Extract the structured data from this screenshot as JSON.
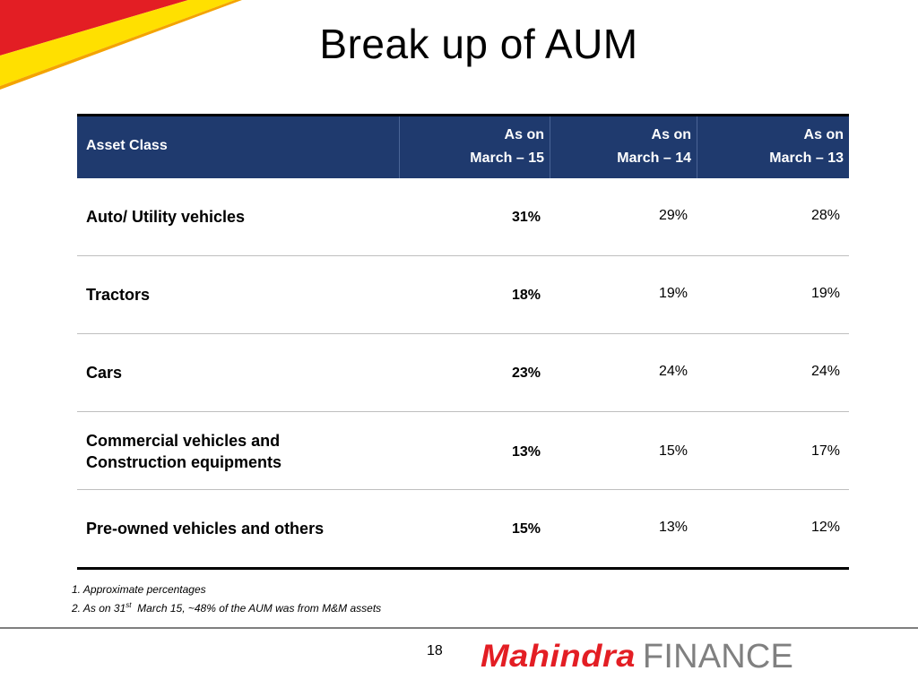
{
  "slide": {
    "title": "Break up of AUM",
    "page_number": "18"
  },
  "table": {
    "header": {
      "asset_class": "Asset Class",
      "columns": [
        {
          "line1": "As on",
          "line2": "March – 15"
        },
        {
          "line1": "As on",
          "line2": "March – 14"
        },
        {
          "line1": "As on",
          "line2": "March – 13"
        }
      ]
    },
    "rows": [
      {
        "label": "Auto/ Utility vehicles",
        "m15": "31%",
        "m14": "29%",
        "m13": "28%"
      },
      {
        "label": "Tractors",
        "m15": "18%",
        "m14": "19%",
        "m13": "19%"
      },
      {
        "label": "Cars",
        "m15": "23%",
        "m14": "24%",
        "m13": "24%"
      },
      {
        "label_line1": "Commercial vehicles and",
        "label_line2": "Construction equipments",
        "m15": "13%",
        "m14": "15%",
        "m13": "17%"
      },
      {
        "label": "Pre-owned vehicles and others",
        "m15": "15%",
        "m14": "13%",
        "m13": "12%"
      }
    ]
  },
  "notes": {
    "note1": "1. Approximate percentages",
    "note2_prefix": "2. As on 31",
    "note2_sup": "st",
    "note2_suffix": "  March 15, ~48% of the AUM was from M&M assets"
  },
  "logo": {
    "brand": "Mahindra",
    "product": "FINANCE",
    "brand_color": "#e31e24",
    "product_color": "#808080"
  },
  "colors": {
    "header_bg": "#1f3a6e",
    "accent_red": "#e31e24",
    "accent_yellow": "#ffe000"
  }
}
